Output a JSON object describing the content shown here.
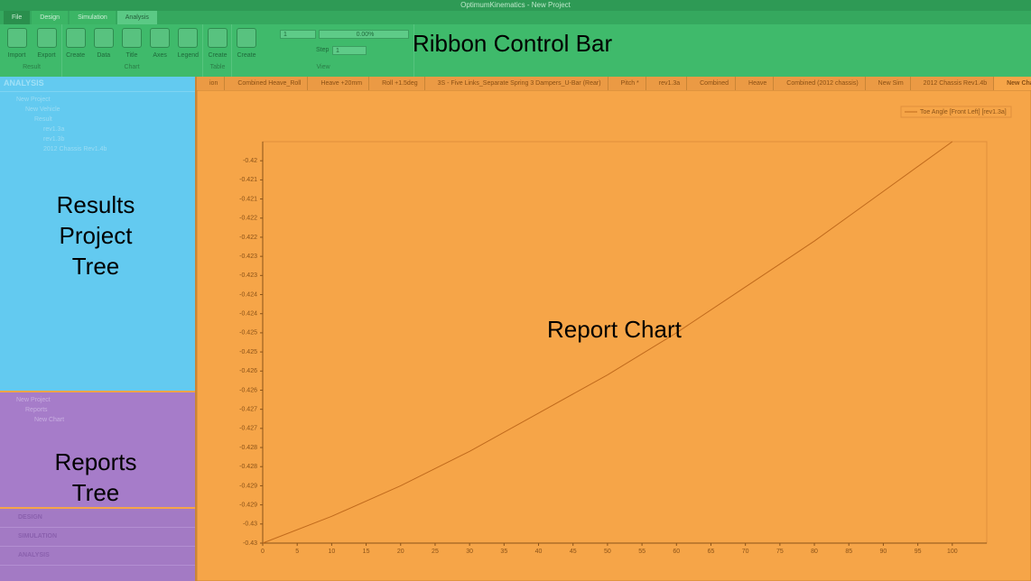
{
  "window": {
    "title": "OptimumKinematics - New Project"
  },
  "ribbon": {
    "tabs": [
      "File",
      "Design",
      "Simulation",
      "Analysis"
    ],
    "groups": [
      {
        "name": "Result",
        "buttons": [
          "Import",
          "Export"
        ]
      },
      {
        "name": "Chart",
        "buttons": [
          "Create",
          "Data",
          "Title",
          "Axes",
          "Legend"
        ]
      },
      {
        "name": "Table",
        "buttons": [
          "Create"
        ]
      },
      {
        "name": "View",
        "buttons": [
          "Create"
        ]
      }
    ],
    "view": {
      "spinner": "1",
      "progress": "0.00%",
      "step_label": "Step",
      "step": "1"
    },
    "overlay": "Ribbon Control Bar"
  },
  "results_panel": {
    "header": "ANALYSIS",
    "tree": [
      {
        "label": "New Project",
        "children": [
          {
            "label": "New Vehicle",
            "children": [
              {
                "label": "Result",
                "children": [
                  {
                    "label": "rev1.3a"
                  },
                  {
                    "label": "rev1.3b"
                  },
                  {
                    "label": "2012 Chassis Rev1.4b"
                  }
                ]
              }
            ]
          }
        ]
      }
    ],
    "overlay": "Results Project Tree"
  },
  "reports_panel": {
    "tree": [
      {
        "label": "New Project",
        "children": [
          {
            "label": "Reports",
            "children": [
              {
                "label": "New Chart"
              }
            ]
          }
        ]
      }
    ],
    "overlay": "Reports Tree"
  },
  "nav": [
    "DESIGN",
    "SIMULATION",
    "ANALYSIS"
  ],
  "document_tabs": [
    "ion",
    "Combined Heave_Roll",
    "Heave +20mm",
    "Roll +1.5deg",
    "3S - Five Links_Separate Spring 3 Dampers_U-Bar (Rear)",
    "Pitch *",
    "rev1.3a",
    "Combined",
    "Heave",
    "Combined (2012 chassis)",
    "New Sim",
    "2012 Chassis Rev1.4b",
    "New Chart *"
  ],
  "chart_overlay": "Report Chart",
  "chart_data": {
    "type": "line",
    "x": [
      0,
      10,
      20,
      30,
      40,
      50,
      60,
      70,
      80,
      90,
      100
    ],
    "series": [
      {
        "name": "Toe Angle [Front Left] [rev1.3a]",
        "color": "#c06a1c",
        "values": [
          -0.43,
          -0.4293,
          -0.4285,
          -0.4276,
          -0.4266,
          -0.4256,
          -0.4245,
          -0.4233,
          -0.4221,
          -0.4208,
          -0.4195
        ]
      }
    ],
    "xlim": [
      0,
      105
    ],
    "xticks": [
      0,
      5,
      10,
      15,
      20,
      25,
      30,
      35,
      40,
      45,
      50,
      55,
      60,
      65,
      70,
      75,
      80,
      85,
      90,
      95,
      100
    ],
    "ylim": [
      -0.43,
      -0.4195
    ],
    "yticks": [
      -0.42,
      {
        "value": -0.4205,
        "label": "-0.421"
      },
      -0.421,
      {
        "value": -0.4215,
        "label": "-0.422"
      },
      -0.422,
      {
        "value": -0.4225,
        "label": "-0.423"
      },
      -0.423,
      {
        "value": -0.4235,
        "label": "-0.424"
      },
      -0.424,
      {
        "value": -0.4245,
        "label": "-0.425"
      },
      -0.425,
      {
        "value": -0.4255,
        "label": "-0.426"
      },
      -0.426,
      {
        "value": -0.4265,
        "label": "-0.427"
      },
      -0.427,
      {
        "value": -0.4275,
        "label": "-0.428"
      },
      -0.428,
      {
        "value": -0.4285,
        "label": "-0.429"
      },
      -0.429,
      {
        "value": -0.4295,
        "label": "-0.43"
      },
      -0.43
    ],
    "grid": false,
    "legend": "top-right"
  }
}
